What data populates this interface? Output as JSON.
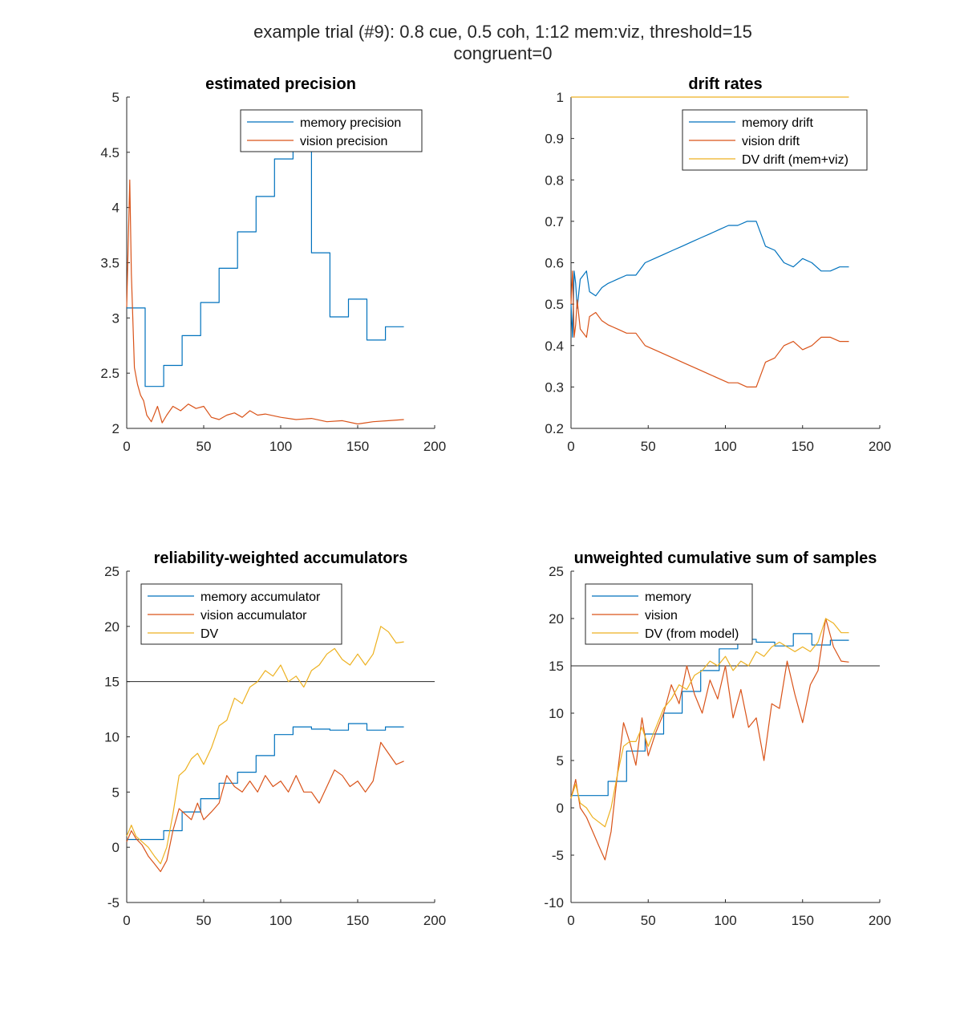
{
  "figure": {
    "suptitle_line1": "example trial (#9): 0.8 cue, 0.5 coh, 1:12 mem:viz, threshold=15",
    "suptitle_line2": "congruent=0"
  },
  "colors": {
    "blue": "#0072BD",
    "orange": "#D95319",
    "yellow": "#EDB120",
    "threshold": "#262626"
  },
  "chart_data": [
    {
      "type": "line",
      "title": "estimated precision",
      "xlim": [
        0,
        200
      ],
      "ylim": [
        2,
        5
      ],
      "xticks": [
        0,
        50,
        100,
        150,
        200
      ],
      "yticks": [
        2,
        2.5,
        3,
        3.5,
        4,
        4.5,
        5
      ],
      "legend": "top-right",
      "series": [
        {
          "name": "memory precision",
          "color": "#0072BD",
          "style": "step",
          "x": [
            0,
            12,
            24,
            36,
            48,
            60,
            72,
            84,
            96,
            108,
            120,
            132,
            144,
            156,
            168,
            180
          ],
          "y": [
            3.09,
            2.38,
            2.57,
            2.84,
            3.14,
            3.45,
            3.78,
            4.1,
            4.44,
            4.55,
            3.59,
            3.01,
            3.17,
            2.8,
            2.92,
            2.92
          ]
        },
        {
          "name": "vision precision",
          "color": "#D95319",
          "style": "line",
          "x": [
            0,
            2,
            3,
            5,
            7,
            9,
            11,
            13,
            16,
            20,
            23,
            26,
            30,
            35,
            40,
            45,
            50,
            55,
            60,
            65,
            70,
            75,
            80,
            85,
            90,
            100,
            110,
            120,
            130,
            140,
            150,
            155,
            160,
            170,
            180
          ],
          "y": [
            3.1,
            4.25,
            3.4,
            2.55,
            2.4,
            2.3,
            2.25,
            2.12,
            2.06,
            2.2,
            2.05,
            2.12,
            2.2,
            2.16,
            2.22,
            2.18,
            2.2,
            2.1,
            2.08,
            2.12,
            2.14,
            2.1,
            2.16,
            2.12,
            2.13,
            2.1,
            2.08,
            2.09,
            2.06,
            2.07,
            2.04,
            2.05,
            2.06,
            2.07,
            2.08
          ]
        }
      ]
    },
    {
      "type": "line",
      "title": "drift rates",
      "xlim": [
        0,
        200
      ],
      "ylim": [
        0.2,
        1
      ],
      "xticks": [
        0,
        50,
        100,
        150,
        200
      ],
      "yticks": [
        0.2,
        0.3,
        0.4,
        0.5,
        0.6,
        0.7,
        0.8,
        0.9,
        1
      ],
      "legend": "top-right",
      "series": [
        {
          "name": "memory drift",
          "color": "#0072BD",
          "style": "line",
          "x": [
            0,
            1,
            2,
            3,
            4,
            6,
            8,
            10,
            12,
            16,
            20,
            24,
            30,
            36,
            42,
            48,
            54,
            60,
            66,
            72,
            78,
            84,
            90,
            96,
            102,
            108,
            114,
            120,
            126,
            132,
            138,
            144,
            150,
            156,
            162,
            168,
            174,
            180
          ],
          "y": [
            0.5,
            0.42,
            0.58,
            0.55,
            0.49,
            0.56,
            0.57,
            0.58,
            0.53,
            0.52,
            0.54,
            0.55,
            0.56,
            0.57,
            0.57,
            0.6,
            0.61,
            0.62,
            0.63,
            0.64,
            0.65,
            0.66,
            0.67,
            0.68,
            0.69,
            0.69,
            0.7,
            0.7,
            0.64,
            0.63,
            0.6,
            0.59,
            0.61,
            0.6,
            0.58,
            0.58,
            0.59,
            0.59
          ]
        },
        {
          "name": "vision drift",
          "color": "#D95319",
          "style": "line",
          "x": [
            0,
            1,
            2,
            3,
            4,
            6,
            8,
            10,
            12,
            16,
            20,
            24,
            30,
            36,
            42,
            48,
            54,
            60,
            66,
            72,
            78,
            84,
            90,
            96,
            102,
            108,
            114,
            120,
            126,
            132,
            138,
            144,
            150,
            156,
            162,
            168,
            174,
            180
          ],
          "y": [
            0.5,
            0.58,
            0.42,
            0.45,
            0.51,
            0.44,
            0.43,
            0.42,
            0.47,
            0.48,
            0.46,
            0.45,
            0.44,
            0.43,
            0.43,
            0.4,
            0.39,
            0.38,
            0.37,
            0.36,
            0.35,
            0.34,
            0.33,
            0.32,
            0.31,
            0.31,
            0.3,
            0.3,
            0.36,
            0.37,
            0.4,
            0.41,
            0.39,
            0.4,
            0.42,
            0.42,
            0.41,
            0.41
          ]
        },
        {
          "name": "DV drift (mem+viz)",
          "color": "#EDB120",
          "style": "line",
          "x": [
            0,
            180
          ],
          "y": [
            1,
            1
          ]
        }
      ]
    },
    {
      "type": "line",
      "title": "reliability-weighted accumulators",
      "xlim": [
        0,
        200
      ],
      "ylim": [
        -5,
        25
      ],
      "xticks": [
        0,
        50,
        100,
        150,
        200
      ],
      "yticks": [
        -5,
        0,
        5,
        10,
        15,
        20,
        25
      ],
      "threshold": 15,
      "legend": "top-left",
      "series": [
        {
          "name": "memory accumulator",
          "color": "#0072BD",
          "style": "step",
          "x": [
            0,
            12,
            24,
            36,
            48,
            60,
            72,
            84,
            96,
            108,
            120,
            132,
            144,
            156,
            168,
            180
          ],
          "y": [
            0.7,
            0.7,
            1.5,
            3.2,
            4.4,
            5.8,
            6.8,
            8.3,
            10.2,
            10.9,
            10.7,
            10.6,
            11.2,
            10.6,
            10.9,
            10.9
          ]
        },
        {
          "name": "vision accumulator",
          "color": "#D95319",
          "style": "line",
          "x": [
            0,
            3,
            6,
            10,
            14,
            18,
            22,
            26,
            30,
            34,
            38,
            42,
            46,
            50,
            55,
            60,
            65,
            70,
            75,
            80,
            85,
            90,
            95,
            100,
            105,
            110,
            115,
            120,
            125,
            130,
            135,
            140,
            145,
            150,
            155,
            160,
            165,
            170,
            175,
            180
          ],
          "y": [
            0.5,
            1.5,
            0.8,
            0.2,
            -0.8,
            -1.5,
            -2.2,
            -1.2,
            1.5,
            3.5,
            3.0,
            2.5,
            4.0,
            2.5,
            3.2,
            4.0,
            6.5,
            5.5,
            5.0,
            6.0,
            5.0,
            6.5,
            5.5,
            6.0,
            5.0,
            6.5,
            5.0,
            5.0,
            4.0,
            5.5,
            7.0,
            6.5,
            5.5,
            6.0,
            5.0,
            6.0,
            9.5,
            8.5,
            7.5,
            7.8
          ]
        },
        {
          "name": "DV",
          "color": "#EDB120",
          "style": "line",
          "x": [
            0,
            3,
            6,
            10,
            14,
            18,
            22,
            26,
            30,
            34,
            38,
            42,
            46,
            50,
            55,
            60,
            65,
            70,
            75,
            80,
            85,
            90,
            95,
            100,
            105,
            110,
            115,
            120,
            125,
            130,
            135,
            140,
            145,
            150,
            155,
            160,
            165,
            170,
            175,
            180
          ],
          "y": [
            1.0,
            2.0,
            1.0,
            0.5,
            0.0,
            -0.8,
            -1.5,
            0.0,
            3.0,
            6.5,
            7.0,
            8.0,
            8.5,
            7.5,
            9.0,
            11.0,
            11.5,
            13.5,
            13.0,
            14.5,
            15.0,
            16.0,
            15.5,
            16.5,
            15.0,
            15.5,
            14.5,
            16.0,
            16.5,
            17.5,
            18.0,
            17.0,
            16.5,
            17.5,
            16.5,
            17.5,
            20.0,
            19.5,
            18.5,
            18.6
          ]
        }
      ]
    },
    {
      "type": "line",
      "title": "unweighted cumulative sum of samples",
      "xlim": [
        0,
        200
      ],
      "ylim": [
        -10,
        25
      ],
      "xticks": [
        0,
        50,
        100,
        150,
        200
      ],
      "yticks": [
        -10,
        -5,
        0,
        5,
        10,
        15,
        20,
        25
      ],
      "threshold": 15,
      "legend": "top-left",
      "series": [
        {
          "name": "memory",
          "color": "#0072BD",
          "style": "step",
          "x": [
            0,
            12,
            24,
            36,
            48,
            60,
            72,
            84,
            96,
            108,
            120,
            132,
            144,
            156,
            168,
            180
          ],
          "y": [
            1.3,
            1.3,
            2.8,
            6.0,
            7.8,
            10.0,
            12.3,
            14.5,
            16.8,
            17.8,
            17.5,
            17.1,
            18.4,
            17.2,
            17.7,
            17.7
          ]
        },
        {
          "name": "vision",
          "color": "#D95319",
          "style": "line",
          "x": [
            0,
            3,
            6,
            10,
            14,
            18,
            22,
            26,
            30,
            34,
            38,
            42,
            46,
            50,
            55,
            60,
            65,
            70,
            75,
            80,
            85,
            90,
            95,
            100,
            105,
            110,
            115,
            120,
            125,
            130,
            135,
            140,
            145,
            150,
            155,
            160,
            165,
            170,
            175,
            180
          ],
          "y": [
            1.0,
            3.0,
            0.0,
            -1.0,
            -2.5,
            -4.0,
            -5.5,
            -2.5,
            3.5,
            9.0,
            7.0,
            4.5,
            9.5,
            5.5,
            8.0,
            10.0,
            13.0,
            11.0,
            15.0,
            12.0,
            10.0,
            13.5,
            11.5,
            15.0,
            9.5,
            12.5,
            8.5,
            9.5,
            5.0,
            11.0,
            10.5,
            15.5,
            12.0,
            9.0,
            13.0,
            14.5,
            20.0,
            17.0,
            15.5,
            15.4
          ]
        },
        {
          "name": "DV (from model)",
          "color": "#EDB120",
          "style": "line",
          "x": [
            0,
            3,
            6,
            10,
            14,
            18,
            22,
            26,
            30,
            34,
            38,
            42,
            46,
            50,
            55,
            60,
            65,
            70,
            75,
            80,
            85,
            90,
            95,
            100,
            105,
            110,
            115,
            120,
            125,
            130,
            135,
            140,
            145,
            150,
            155,
            160,
            165,
            170,
            175,
            180
          ],
          "y": [
            1.0,
            2.5,
            0.5,
            0.0,
            -1.0,
            -1.5,
            -2.0,
            0.0,
            3.5,
            6.5,
            7.0,
            7.0,
            8.5,
            6.5,
            8.5,
            10.5,
            11.5,
            13.0,
            12.5,
            14.0,
            14.5,
            15.5,
            15.0,
            16.0,
            14.5,
            15.5,
            15.0,
            16.5,
            16.0,
            17.0,
            17.5,
            17.0,
            16.5,
            17.0,
            16.5,
            17.5,
            20.0,
            19.5,
            18.5,
            18.5
          ]
        }
      ]
    }
  ]
}
